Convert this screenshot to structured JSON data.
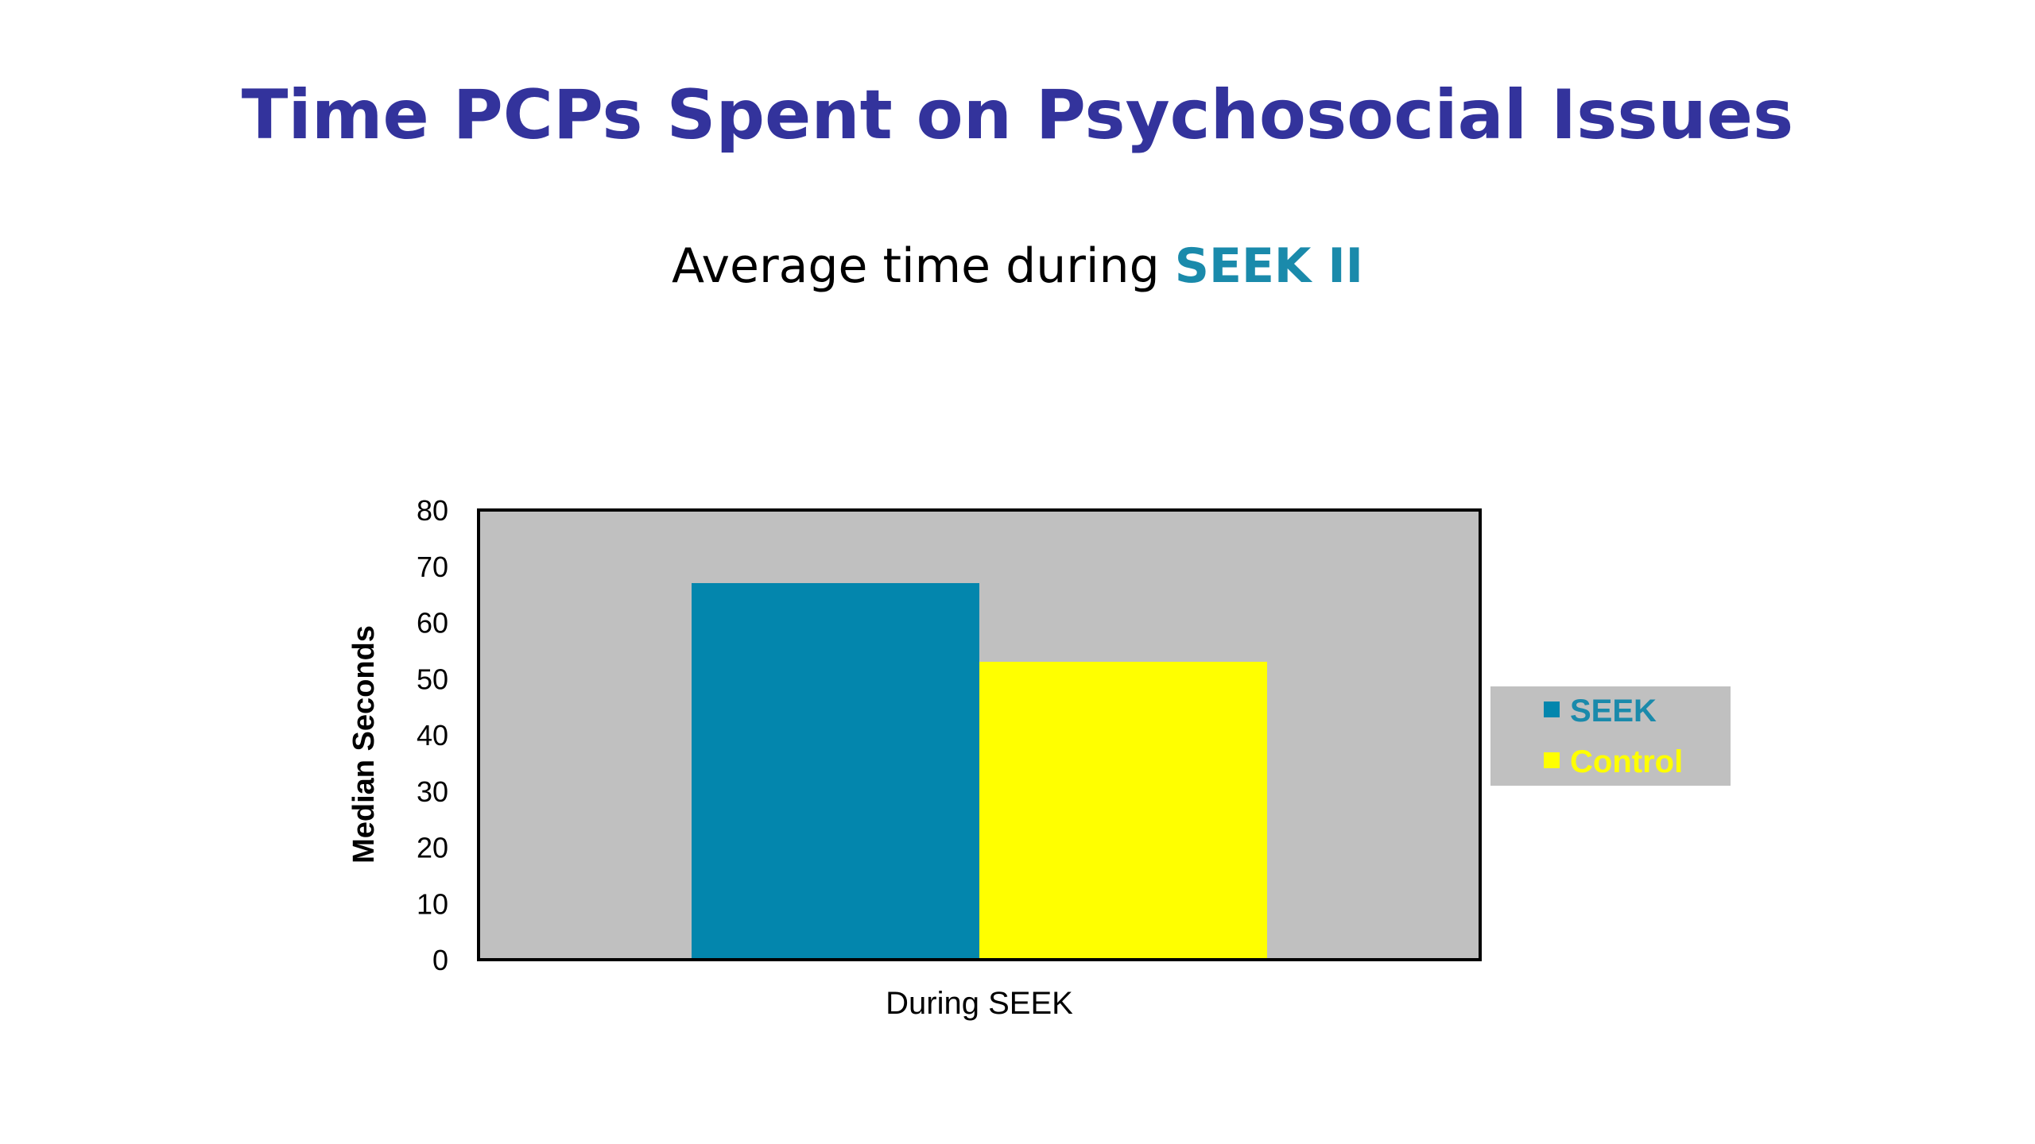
{
  "slide": {
    "title": "Time PCPs Spent on Psychosocial Issues",
    "subtitle_prefix": "Average time during ",
    "subtitle_highlight": "SEEK II"
  },
  "colors": {
    "title": "#33339c",
    "subtitle_accent": "#1a8aab",
    "plot_background": "#c0c0c0",
    "legend_background": "#c0c0c0",
    "seek": "#0386ad",
    "control": "#ffff00"
  },
  "chart_data": {
    "type": "bar",
    "categories": [
      "During SEEK"
    ],
    "series": [
      {
        "name": "SEEK",
        "values": [
          67
        ],
        "color": "#0386ad"
      },
      {
        "name": "Control",
        "values": [
          53
        ],
        "color": "#ffff00"
      }
    ],
    "title": "",
    "xlabel": "",
    "ylabel": "Median Seconds",
    "ylim": [
      0,
      80
    ],
    "yticks": [
      0,
      10,
      20,
      30,
      40,
      50,
      60,
      70,
      80
    ],
    "grid": false,
    "legend": "right"
  }
}
